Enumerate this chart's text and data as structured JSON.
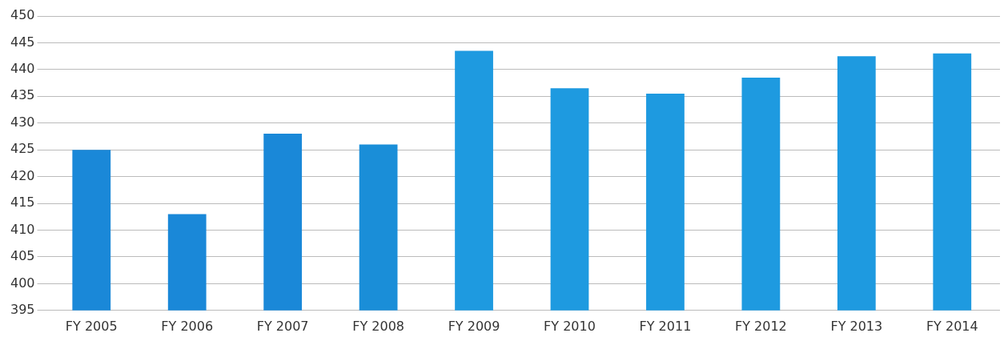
{
  "chart_data": {
    "type": "bar",
    "categories": [
      "FY 2005",
      "FY 2006",
      "FY 2007",
      "FY 2008",
      "FY 2009",
      "FY 2010",
      "FY 2011",
      "FY 2012",
      "FY 2013",
      "FY 2014"
    ],
    "values": [
      425,
      413,
      428,
      426,
      443.5,
      436.5,
      435.5,
      438.5,
      442.5,
      443
    ],
    "colors": [
      "#1a88d8",
      "#1a88d8",
      "#1a88d8",
      "#1a8ed8",
      "#1e9ae0",
      "#1e9ae0",
      "#1e9ae0",
      "#1e9ae0",
      "#1e9ae0",
      "#1e9ae0"
    ],
    "ylim": [
      395,
      450
    ],
    "yticks": [
      395,
      400,
      405,
      410,
      415,
      420,
      425,
      430,
      435,
      440,
      445,
      450
    ],
    "grid": "y",
    "legend": false
  }
}
